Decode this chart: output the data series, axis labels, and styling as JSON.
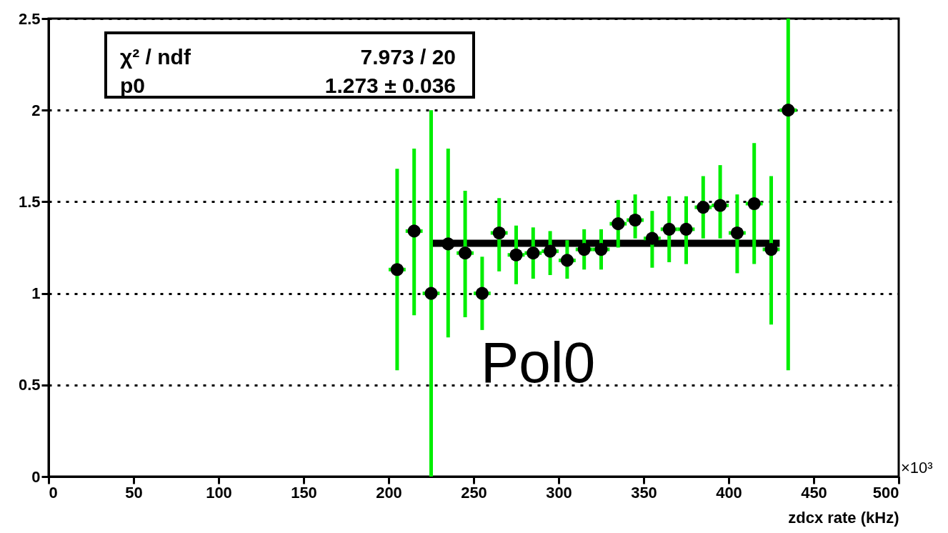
{
  "chart_data": {
    "type": "scatter",
    "xlabel": "zdcx rate (kHz)",
    "xlim": [
      0,
      500
    ],
    "xticks": [
      0,
      50,
      100,
      150,
      200,
      250,
      300,
      350,
      400,
      450,
      500
    ],
    "ylim": [
      0,
      2.5
    ],
    "yticks": [
      {
        "value": 0,
        "label": "0"
      },
      0.5,
      {
        "value": 1,
        "label": "1"
      },
      1.5,
      {
        "value": 2,
        "label": "2"
      },
      2.5
    ],
    "grid": "y",
    "marker": "circle",
    "series": [
      {
        "color": "#000000",
        "x": [
          205,
          215,
          225,
          235,
          245,
          255,
          265,
          275,
          285,
          295,
          305,
          315,
          325,
          335,
          345,
          355,
          365,
          375,
          385,
          395,
          405,
          415,
          425,
          435
        ],
        "values": [
          1.13,
          1.34,
          1.0,
          1.27,
          1.22,
          1.0,
          1.33,
          1.21,
          1.22,
          1.23,
          1.18,
          1.24,
          1.24,
          1.38,
          1.4,
          1.3,
          1.35,
          1.35,
          1.47,
          1.48,
          1.33,
          1.49,
          1.24,
          2.0
        ],
        "errors": [
          [
            0.58,
            1.68
          ],
          [
            0.88,
            1.79
          ],
          [
            0.0,
            2.0
          ],
          [
            0.76,
            1.79
          ],
          [
            0.87,
            1.56
          ],
          [
            0.8,
            1.2
          ],
          [
            1.12,
            1.52
          ],
          [
            1.05,
            1.37
          ],
          [
            1.08,
            1.36
          ],
          [
            1.1,
            1.34
          ],
          [
            1.08,
            1.29
          ],
          [
            1.13,
            1.35
          ],
          [
            1.13,
            1.35
          ],
          [
            1.25,
            1.51
          ],
          [
            1.3,
            1.54
          ],
          [
            1.14,
            1.45
          ],
          [
            1.17,
            1.53
          ],
          [
            1.16,
            1.53
          ],
          [
            1.3,
            1.64
          ],
          [
            1.3,
            1.7
          ],
          [
            1.11,
            1.54
          ],
          [
            1.16,
            1.82
          ],
          [
            0.83,
            1.64
          ],
          [
            0.58,
            2.5
          ]
        ],
        "xerrors": [
          5,
          5,
          5,
          null,
          5,
          5,
          5,
          5,
          5,
          5,
          5,
          5,
          5,
          5,
          5,
          5,
          5,
          5,
          5,
          5,
          5,
          5,
          5,
          5
        ]
      },
      {
        "type": "line",
        "marker": "none",
        "color": "#000000",
        "x": [
          225,
          430
        ],
        "values": [
          1.273,
          1.273
        ]
      }
    ],
    "annotations": [
      "χ² / ndf",
      "7.973 / 20",
      "p0",
      "1.273 ± 0.036",
      "Pol0",
      "×10³"
    ]
  }
}
